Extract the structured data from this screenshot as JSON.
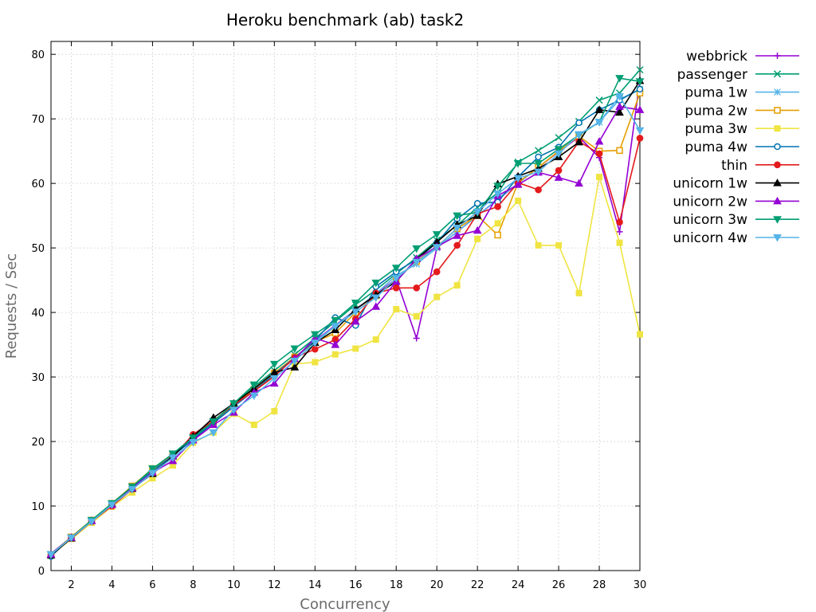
{
  "chart_data": {
    "type": "line",
    "title": "Heroku benchmark (ab) task2",
    "xlabel": "Concurrency",
    "ylabel": "Requests / Sec",
    "xlim": [
      1,
      30
    ],
    "ylim": [
      0,
      82
    ],
    "xticks": [
      2,
      4,
      6,
      8,
      10,
      12,
      14,
      16,
      18,
      20,
      22,
      24,
      26,
      28,
      30
    ],
    "yticks": [
      0,
      10,
      20,
      30,
      40,
      50,
      60,
      70,
      80
    ],
    "grid": true,
    "legend_position": "right",
    "x": [
      1,
      2,
      3,
      4,
      5,
      6,
      7,
      8,
      9,
      10,
      11,
      12,
      13,
      14,
      15,
      16,
      17,
      18,
      19,
      20,
      21,
      22,
      23,
      24,
      25,
      26,
      27,
      28,
      29,
      30
    ],
    "series": [
      {
        "name": "webbrick",
        "color": "#9400d3",
        "marker": "plus",
        "values": [
          2.6,
          5.2,
          7.8,
          10.3,
          12.9,
          15.4,
          17.9,
          20.5,
          23.0,
          25.6,
          28.0,
          30.5,
          33.0,
          35.6,
          38.0,
          40.4,
          42.8,
          45.2,
          36.0,
          50.0,
          52.5,
          55.0,
          57.5,
          60.0,
          62.5,
          64.9,
          67.2,
          64.0,
          52.5,
          76.0
        ]
      },
      {
        "name": "passenger",
        "color": "#009e73",
        "marker": "cross",
        "values": [
          2.5,
          5.2,
          7.8,
          10.4,
          13.0,
          15.6,
          18.1,
          20.7,
          23.2,
          25.8,
          28.5,
          31.0,
          33.5,
          36.0,
          38.6,
          41.2,
          43.5,
          46.0,
          48.5,
          51.2,
          53.5,
          56.3,
          58.5,
          63.3,
          65.1,
          67.1,
          69.6,
          72.9,
          74.0,
          77.6
        ]
      },
      {
        "name": "puma 1w",
        "color": "#56b4e9",
        "marker": "star",
        "values": [
          2.4,
          5.1,
          7.7,
          10.2,
          12.8,
          15.3,
          17.8,
          20.2,
          22.8,
          25.4,
          27.9,
          30.4,
          32.9,
          35.5,
          37.9,
          40.4,
          42.9,
          45.7,
          47.5,
          50.0,
          52.5,
          55.0,
          57.6,
          60.0,
          62.5,
          65.0,
          67.5,
          69.5,
          73.0,
          74.6
        ]
      },
      {
        "name": "puma 2w",
        "color": "#e69f00",
        "marker": "square-open",
        "values": [
          2.5,
          5.2,
          7.8,
          10.4,
          13.1,
          15.8,
          18.0,
          20.4,
          23.0,
          25.5,
          28.1,
          30.6,
          33.1,
          35.4,
          36.8,
          40.0,
          42.6,
          45.1,
          47.9,
          50.2,
          53.0,
          55.0,
          52.0,
          60.1,
          62.5,
          65.0,
          67.3,
          65.0,
          65.1,
          74.0
        ]
      },
      {
        "name": "puma 3w",
        "color": "#f0e442",
        "marker": "square-filled",
        "values": [
          2.3,
          4.9,
          7.4,
          9.9,
          12.1,
          14.3,
          16.3,
          19.8,
          21.4,
          24.3,
          22.6,
          24.7,
          32.0,
          32.3,
          33.5,
          34.4,
          35.8,
          40.5,
          39.4,
          42.4,
          44.2,
          51.4,
          53.8,
          57.3,
          50.4,
          50.4,
          43.0,
          61.0,
          50.8,
          36.6
        ]
      },
      {
        "name": "puma 4w",
        "color": "#0072b2",
        "marker": "circle-open",
        "values": [
          2.2,
          5.1,
          7.7,
          10.3,
          12.9,
          15.3,
          17.8,
          20.4,
          22.9,
          25.4,
          27.9,
          30.4,
          33.0,
          35.6,
          39.2,
          38.0,
          44.0,
          46.3,
          48.2,
          50.8,
          54.5,
          56.9,
          57.1,
          61.0,
          64.1,
          65.6,
          69.4,
          71.4,
          72.9,
          74.6
        ]
      },
      {
        "name": "thin",
        "color": "#e41a1c",
        "marker": "circle-filled",
        "values": [
          2.4,
          5.0,
          7.6,
          10.0,
          12.6,
          15.1,
          17.6,
          21.1,
          23.2,
          25.7,
          27.8,
          30.1,
          33.0,
          34.3,
          35.8,
          39.0,
          43.0,
          43.8,
          43.8,
          46.3,
          50.4,
          55.3,
          56.4,
          60.1,
          59.0,
          62.0,
          66.5,
          64.6,
          54.0,
          67.0
        ]
      },
      {
        "name": "unicorn 1w",
        "color": "#000000",
        "marker": "triangle-up",
        "values": [
          2.4,
          5.0,
          7.7,
          10.3,
          12.7,
          15.0,
          17.7,
          20.8,
          23.7,
          25.9,
          28.2,
          30.7,
          31.5,
          35.3,
          37.3,
          40.5,
          42.7,
          44.8,
          48.3,
          50.9,
          53.6,
          55.0,
          59.9,
          61.1,
          62.3,
          64.1,
          66.4,
          71.4,
          71.0,
          75.9
        ]
      },
      {
        "name": "unicorn 2w",
        "color": "#9400d3",
        "marker": "triangle-up",
        "values": [
          2.5,
          5.1,
          7.7,
          10.2,
          12.8,
          15.2,
          17.0,
          20.2,
          22.6,
          24.5,
          27.6,
          29.0,
          32.8,
          36.0,
          35.0,
          38.6,
          40.9,
          44.8,
          48.3,
          50.2,
          51.9,
          52.7,
          58.1,
          59.8,
          61.7,
          60.9,
          60.0,
          66.5,
          71.9,
          71.4
        ]
      },
      {
        "name": "unicorn 3w",
        "color": "#009e73",
        "marker": "triangle-down",
        "values": [
          2.5,
          5.1,
          7.8,
          10.4,
          13.0,
          15.8,
          18.1,
          20.6,
          23.1,
          25.9,
          28.8,
          32.0,
          34.4,
          36.6,
          38.8,
          41.5,
          44.6,
          46.9,
          49.9,
          52.1,
          55.0,
          55.5,
          59.6,
          63.1,
          63.1,
          65.3,
          67.5,
          69.5,
          76.3,
          75.8
        ]
      },
      {
        "name": "unicorn 4w",
        "color": "#56b4e9",
        "marker": "triangle-down",
        "values": [
          2.5,
          5.1,
          7.6,
          10.2,
          12.6,
          15.1,
          17.5,
          19.9,
          21.4,
          24.9,
          27.1,
          29.8,
          32.5,
          35.3,
          37.9,
          40.1,
          42.3,
          45.3,
          47.8,
          50.1,
          53.1,
          55.6,
          58.4,
          60.8,
          61.8,
          64.6,
          67.6,
          69.5,
          73.5,
          68.2
        ]
      }
    ]
  }
}
